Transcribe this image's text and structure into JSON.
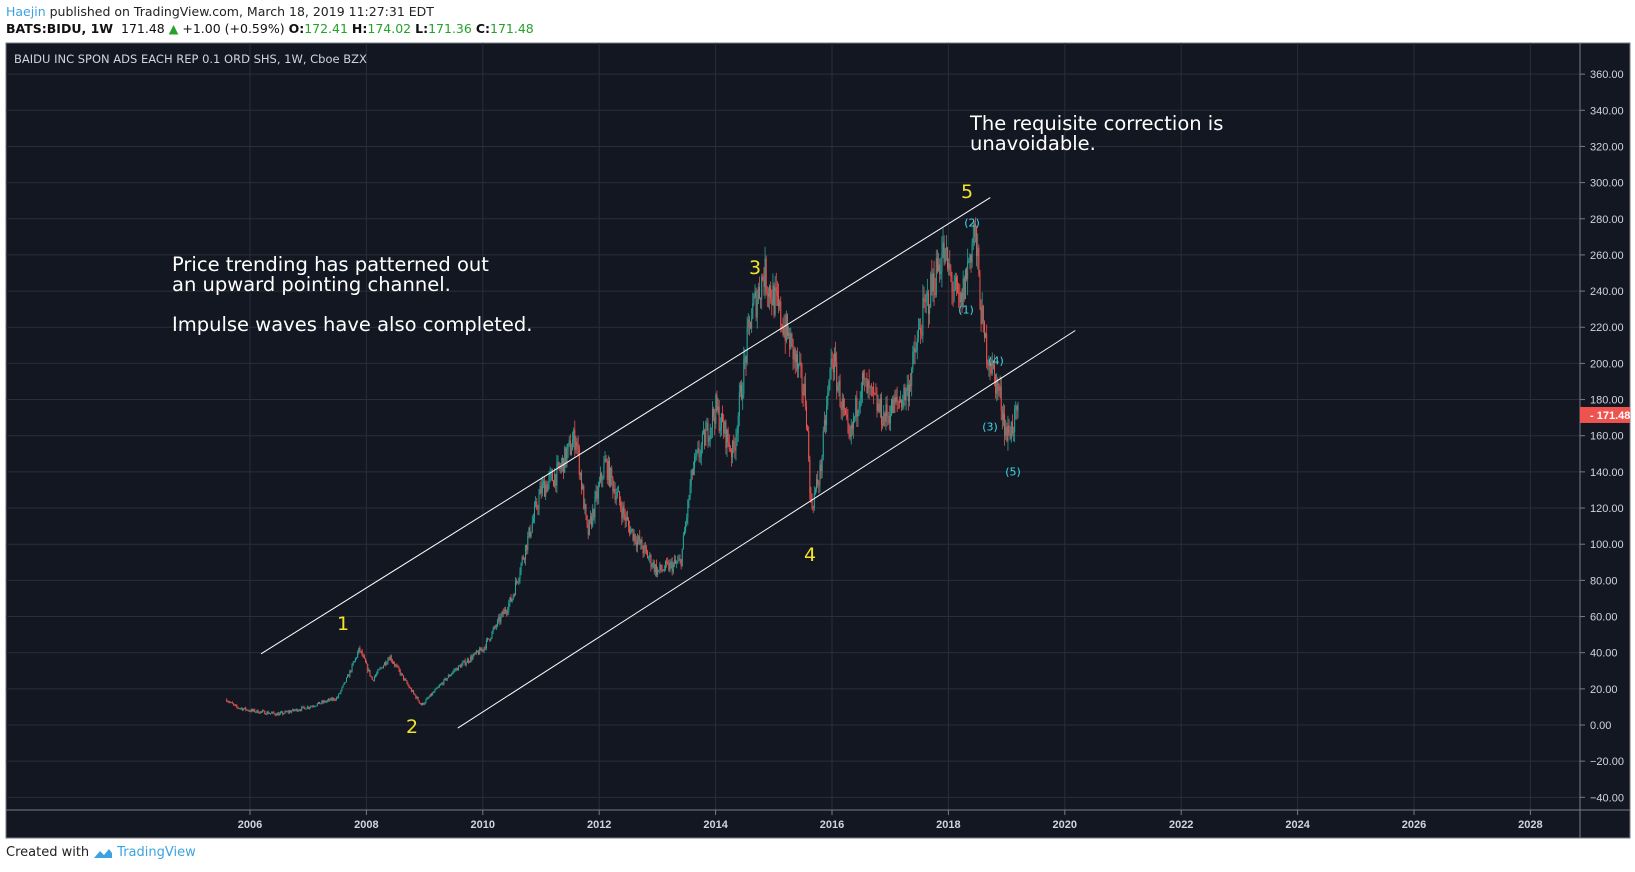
{
  "header": {
    "author": "Haejin",
    "published": "published on TradingView.com, March 18, 2019 11:27:31 EDT",
    "symbol": "BATS:BIDU, 1W",
    "last": "171.48",
    "change": "+1.00 (+0.59%)",
    "o_label": "O:",
    "o": "172.41",
    "h_label": "H:",
    "h": "174.02",
    "l_label": "L:",
    "l": "171.36",
    "c_label": "C:",
    "c": "171.48"
  },
  "footer": {
    "created_with": "Created with",
    "brand": "TradingView"
  },
  "colors": {
    "background": "#131722",
    "grid": "#2a2e39",
    "up": "#26a69a",
    "down": "#ef5350",
    "wave": "#f5e32a",
    "subwave": "#3fd8e6",
    "last_price": "#ef5350"
  },
  "chart_data": {
    "type": "candlestick",
    "title": "BAIDU INC SPON ADS EACH REP 0.1 ORD SHS, 1W, Cboe BZX",
    "interval": "1W",
    "ylim": [
      -40,
      370
    ],
    "xlim": [
      2004.0,
      2029.0
    ],
    "grid": true,
    "y_ticks": [
      "360.00",
      "340.00",
      "320.00",
      "300.00",
      "280.00",
      "260.00",
      "240.00",
      "220.00",
      "200.00",
      "180.00",
      "160.00",
      "140.00",
      "120.00",
      "100.00",
      "80.00",
      "60.00",
      "40.00",
      "20.00",
      "0.00",
      "−20.00",
      "−40.00"
    ],
    "y_tick_values": [
      360,
      340,
      320,
      300,
      280,
      260,
      240,
      220,
      200,
      180,
      160,
      140,
      120,
      100,
      80,
      60,
      40,
      20,
      0,
      -20,
      -40
    ],
    "x_ticks": [
      "2006",
      "2008",
      "2010",
      "2012",
      "2014",
      "2016",
      "2018",
      "2020",
      "2022",
      "2024",
      "2026",
      "2028"
    ],
    "x_tick_values": [
      2006,
      2008,
      2010,
      2012,
      2014,
      2016,
      2018,
      2020,
      2022,
      2024,
      2026,
      2028
    ],
    "last_price_label": "171.48",
    "last_price": 171.48,
    "price_path": [
      [
        2005.6,
        14
      ],
      [
        2005.75,
        10
      ],
      [
        2006.0,
        8
      ],
      [
        2006.5,
        6
      ],
      [
        2007.0,
        10
      ],
      [
        2007.5,
        15
      ],
      [
        2007.7,
        28
      ],
      [
        2007.88,
        42
      ],
      [
        2008.1,
        25
      ],
      [
        2008.4,
        38
      ],
      [
        2008.75,
        20
      ],
      [
        2008.95,
        11
      ],
      [
        2009.5,
        30
      ],
      [
        2010.0,
        42
      ],
      [
        2010.5,
        70
      ],
      [
        2011.0,
        130
      ],
      [
        2011.3,
        140
      ],
      [
        2011.6,
        160
      ],
      [
        2011.8,
        105
      ],
      [
        2012.1,
        145
      ],
      [
        2012.5,
        110
      ],
      [
        2013.0,
        85
      ],
      [
        2013.4,
        90
      ],
      [
        2013.6,
        140
      ],
      [
        2014.0,
        175
      ],
      [
        2014.3,
        150
      ],
      [
        2014.6,
        225
      ],
      [
        2014.83,
        250
      ],
      [
        2015.3,
        210
      ],
      [
        2015.55,
        180
      ],
      [
        2015.64,
        120
      ],
      [
        2015.8,
        140
      ],
      [
        2016.0,
        205
      ],
      [
        2016.3,
        155
      ],
      [
        2016.5,
        190
      ],
      [
        2016.9,
        170
      ],
      [
        2017.3,
        185
      ],
      [
        2017.55,
        225
      ],
      [
        2017.9,
        262
      ],
      [
        2018.2,
        230
      ],
      [
        2018.45,
        275
      ],
      [
        2018.6,
        215
      ],
      [
        2018.9,
        180
      ],
      [
        2019.0,
        160
      ],
      [
        2019.2,
        171.48
      ]
    ],
    "channel_lines": [
      {
        "from": [
          2006.19,
          39.4
        ],
        "to": [
          2018.72,
          291.7
        ]
      },
      {
        "from": [
          2009.57,
          -1.7
        ],
        "to": [
          2020.18,
          218.2
        ]
      }
    ],
    "annotations": {
      "text1": "Price trending has patterned out\nan upward pointing channel.\n\nImpulse waves have also completed.",
      "text2": "The requisite correction is\nunavoidable.",
      "waves": [
        "1",
        "2",
        "3",
        "4",
        "5"
      ],
      "subwaves": [
        "(2)",
        "(1)",
        "(4)",
        "(3)",
        "(5)"
      ]
    }
  }
}
